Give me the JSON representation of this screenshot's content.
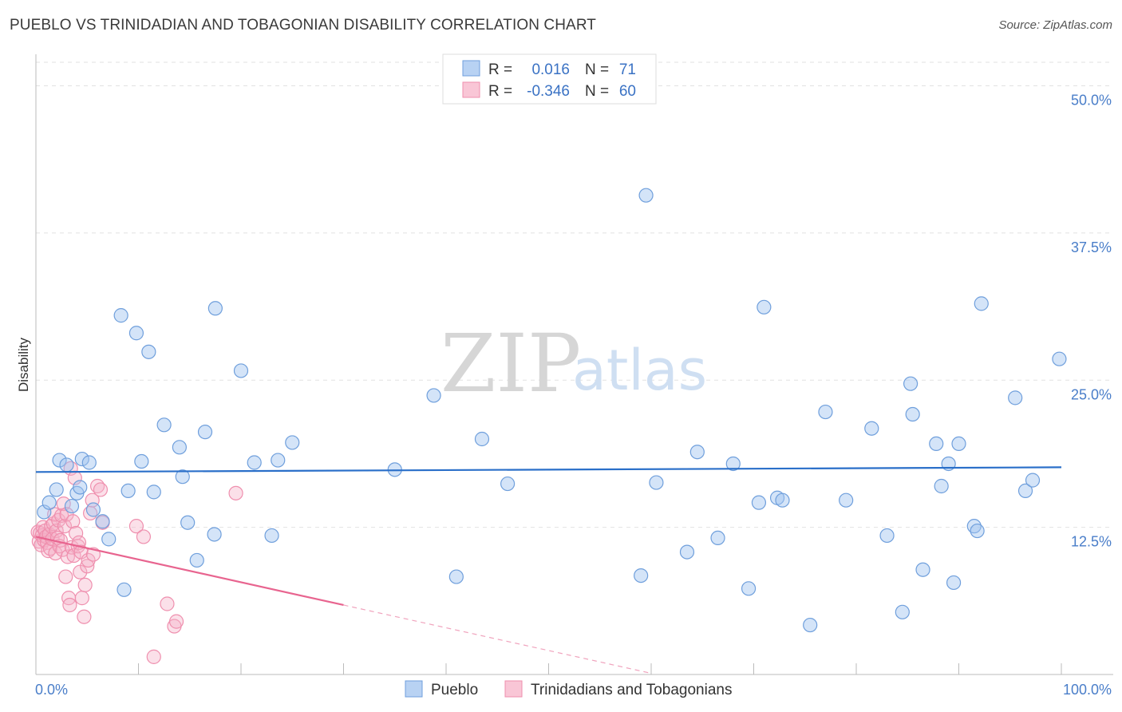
{
  "header": {
    "title": "PUEBLO VS TRINIDADIAN AND TOBAGONIAN DISABILITY CORRELATION CHART",
    "source": "Source: ZipAtlas.com"
  },
  "watermark": {
    "part1": "ZIP",
    "part2": "atlas"
  },
  "legend": {
    "rows": [
      {
        "r_label": "R =",
        "r_value": "0.016",
        "n_label": "N =",
        "n_value": "71"
      },
      {
        "r_label": "R =",
        "r_value": "-0.346",
        "n_label": "N =",
        "n_value": "60"
      }
    ]
  },
  "chart_data": {
    "type": "scatter",
    "title": "PUEBLO VS TRINIDADIAN AND TOBAGONIAN DISABILITY CORRELATION CHART",
    "xlabel": "",
    "ylabel": "Disability",
    "xlim": [
      0,
      100
    ],
    "ylim": [
      0,
      50
    ],
    "x_tick_labels": [
      "0.0%",
      "100.0%"
    ],
    "y_ticks": [
      12.5,
      25.0,
      37.5,
      50.0
    ],
    "y_tick_labels": [
      "12.5%",
      "25.0%",
      "37.5%",
      "50.0%"
    ],
    "grid": "horizontal dashed",
    "colors": {
      "pueblo": "#5b93d8",
      "trini": "#ef86a8",
      "pueblo_line": "#2a6fc9",
      "trini_line": "#e8648f"
    },
    "series": [
      {
        "name": "Pueblo",
        "R": 0.016,
        "N": 71,
        "trend": {
          "x": [
            0,
            100
          ],
          "y": [
            17.2,
            17.6
          ],
          "style": "solid"
        },
        "points": [
          [
            0.8,
            13.8
          ],
          [
            1.3,
            14.6
          ],
          [
            2.0,
            15.7
          ],
          [
            2.3,
            18.2
          ],
          [
            3.0,
            17.8
          ],
          [
            3.5,
            14.3
          ],
          [
            4.0,
            15.4
          ],
          [
            4.3,
            15.9
          ],
          [
            4.5,
            18.3
          ],
          [
            5.2,
            18.0
          ],
          [
            5.6,
            14.0
          ],
          [
            6.5,
            13.0
          ],
          [
            7.1,
            11.5
          ],
          [
            8.3,
            30.5
          ],
          [
            8.6,
            7.2
          ],
          [
            9.0,
            15.6
          ],
          [
            9.8,
            29.0
          ],
          [
            10.3,
            18.1
          ],
          [
            11.0,
            27.4
          ],
          [
            11.5,
            15.5
          ],
          [
            12.5,
            21.2
          ],
          [
            14.0,
            19.3
          ],
          [
            14.3,
            16.8
          ],
          [
            14.8,
            12.9
          ],
          [
            15.7,
            9.7
          ],
          [
            16.5,
            20.6
          ],
          [
            17.4,
            11.9
          ],
          [
            17.5,
            31.1
          ],
          [
            20.0,
            25.8
          ],
          [
            21.3,
            18.0
          ],
          [
            23.0,
            11.8
          ],
          [
            23.6,
            18.2
          ],
          [
            25.0,
            19.7
          ],
          [
            35.0,
            17.4
          ],
          [
            38.8,
            23.7
          ],
          [
            41.0,
            8.3
          ],
          [
            43.5,
            20.0
          ],
          [
            46.0,
            16.2
          ],
          [
            59.0,
            8.4
          ],
          [
            59.5,
            40.7
          ],
          [
            60.5,
            16.3
          ],
          [
            63.5,
            10.4
          ],
          [
            64.5,
            18.9
          ],
          [
            66.5,
            11.6
          ],
          [
            68.0,
            17.9
          ],
          [
            69.5,
            7.3
          ],
          [
            70.5,
            14.6
          ],
          [
            71.0,
            31.2
          ],
          [
            72.3,
            15.0
          ],
          [
            72.8,
            14.8
          ],
          [
            75.5,
            4.2
          ],
          [
            77.0,
            22.3
          ],
          [
            79.0,
            14.8
          ],
          [
            81.5,
            20.9
          ],
          [
            83.0,
            11.8
          ],
          [
            84.5,
            5.3
          ],
          [
            85.3,
            24.7
          ],
          [
            85.5,
            22.1
          ],
          [
            86.5,
            8.9
          ],
          [
            87.8,
            19.6
          ],
          [
            88.3,
            16.0
          ],
          [
            89.0,
            17.9
          ],
          [
            89.5,
            7.8
          ],
          [
            90.0,
            19.6
          ],
          [
            91.5,
            12.6
          ],
          [
            91.8,
            12.2
          ],
          [
            92.2,
            31.5
          ],
          [
            95.5,
            23.5
          ],
          [
            96.5,
            15.6
          ],
          [
            97.2,
            16.5
          ],
          [
            99.8,
            26.8
          ]
        ]
      },
      {
        "name": "Trinidadians and Tobagonians",
        "R": -0.346,
        "N": 60,
        "trend": {
          "x": [
            0,
            30,
            60
          ],
          "y": [
            11.7,
            5.9,
            0.1
          ],
          "style": "solid-then-dashed",
          "solid_until_x": 30
        },
        "points": [
          [
            0.2,
            12.1
          ],
          [
            0.3,
            11.3
          ],
          [
            0.4,
            12.0
          ],
          [
            0.5,
            11.0
          ],
          [
            0.6,
            11.8
          ],
          [
            0.7,
            12.5
          ],
          [
            0.8,
            11.4
          ],
          [
            0.9,
            12.2
          ],
          [
            1.0,
            11.7
          ],
          [
            1.1,
            11.2
          ],
          [
            1.2,
            10.5
          ],
          [
            1.3,
            11.9
          ],
          [
            1.4,
            10.7
          ],
          [
            1.5,
            12.6
          ],
          [
            1.6,
            11.5
          ],
          [
            1.7,
            12.8
          ],
          [
            1.8,
            13.6
          ],
          [
            1.9,
            10.3
          ],
          [
            2.0,
            12.2
          ],
          [
            2.1,
            11.6
          ],
          [
            2.2,
            13.1
          ],
          [
            2.3,
            10.9
          ],
          [
            2.4,
            11.4
          ],
          [
            2.5,
            13.5
          ],
          [
            2.6,
            10.6
          ],
          [
            2.7,
            14.5
          ],
          [
            2.8,
            12.6
          ],
          [
            2.9,
            8.3
          ],
          [
            3.0,
            13.6
          ],
          [
            3.1,
            10.0
          ],
          [
            3.2,
            6.5
          ],
          [
            3.3,
            5.9
          ],
          [
            3.4,
            17.5
          ],
          [
            3.5,
            10.8
          ],
          [
            3.6,
            13.0
          ],
          [
            3.7,
            10.1
          ],
          [
            3.8,
            16.7
          ],
          [
            3.9,
            12.0
          ],
          [
            4.1,
            10.9
          ],
          [
            4.2,
            11.2
          ],
          [
            4.3,
            8.7
          ],
          [
            4.4,
            10.4
          ],
          [
            4.5,
            6.5
          ],
          [
            4.7,
            4.9
          ],
          [
            4.8,
            7.6
          ],
          [
            5.0,
            9.2
          ],
          [
            5.1,
            9.7
          ],
          [
            5.3,
            13.7
          ],
          [
            5.5,
            14.8
          ],
          [
            5.6,
            10.2
          ],
          [
            6.0,
            16.0
          ],
          [
            6.3,
            15.7
          ],
          [
            6.5,
            12.9
          ],
          [
            9.8,
            12.6
          ],
          [
            10.5,
            11.7
          ],
          [
            11.5,
            1.5
          ],
          [
            12.8,
            6.0
          ],
          [
            13.5,
            4.1
          ],
          [
            13.7,
            4.5
          ],
          [
            19.5,
            15.4
          ]
        ]
      }
    ]
  },
  "bottom_legend": {
    "items": [
      "Pueblo",
      "Trinidadians and Tobagonians"
    ]
  }
}
